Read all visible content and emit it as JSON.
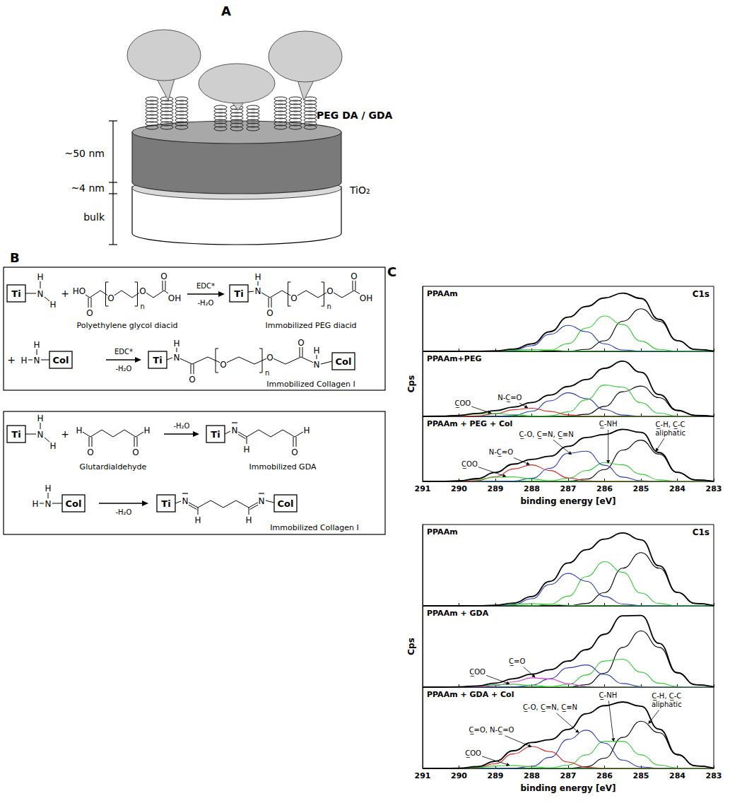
{
  "panel_a": {
    "letter": "A",
    "coating": "PEG DA / GDA",
    "layers": [
      "~50 nm",
      "~4 nm",
      "bulk"
    ],
    "oxide": "TiO₂"
  },
  "panel_b": {
    "letter": "B",
    "atoms": {
      "ti": "Ti",
      "n": "N",
      "h": "H",
      "o": "O",
      "oh": "OH",
      "ho": "HO",
      "repeat": "n",
      "col": "Col",
      "plus": "+"
    },
    "peg_scheme": {
      "reagent": "Polyethylene glycol diacid",
      "intermediate": "Immobilized PEG diacid",
      "product": "Immobilized Collagen I",
      "conditions": [
        "EDC*",
        "-H₂O"
      ]
    },
    "gda_scheme": {
      "reagent": "Glutardialdehyde",
      "intermediate": "Immobilized GDA",
      "product": "Immobilized Collagen I",
      "condition": "-H₂O"
    }
  },
  "panel_c": {
    "letter": "C"
  },
  "chart_data": [
    {
      "type": "line",
      "title": "PPAAm",
      "subtitle": "C1s",
      "x": [
        283,
        283.5,
        284,
        284.5,
        285,
        285.5,
        286,
        286.5,
        287,
        287.5,
        288,
        288.5,
        289,
        289.5,
        290,
        290.5,
        291
      ],
      "xlim": [
        291,
        283
      ],
      "xticks": [
        283,
        284,
        285,
        286,
        287,
        288,
        289,
        290,
        291
      ],
      "ylim": [
        0,
        110
      ],
      "tick_labels": false,
      "grid": false,
      "marker": "none",
      "series": [
        {
          "color": "#000000",
          "line_style": "solid",
          "values": [
            0.3,
            3.2,
            17.9,
            50.9,
            72,
            50.9,
            17.9,
            3.2,
            0.3,
            0,
            0,
            0,
            0,
            0,
            0,
            0,
            0
          ]
        },
        {
          "color": "#33cc33",
          "line_style": "solid",
          "values": [
            0,
            0,
            0.3,
            3.2,
            17.2,
            45.3,
            59.8,
            39.4,
            13.0,
            2.2,
            0.1,
            0,
            0,
            0,
            0,
            0,
            0
          ]
        },
        {
          "color": "#2a3db8",
          "line_style": "solid",
          "values": [
            0,
            0,
            0,
            0,
            0.2,
            2.4,
            12.6,
            33.2,
            43.9,
            28.9,
            9.5,
            1.6,
            0.1,
            0,
            0,
            0,
            0
          ]
        },
        {
          "color": "#33cc33",
          "line_style": "solid",
          "values": [
            0,
            0,
            0,
            0,
            0,
            0,
            0,
            0.1,
            0.7,
            2.1,
            3,
            2.1,
            0.7,
            0.1,
            0,
            0,
            0
          ]
        },
        {
          "color": "#000000",
          "line_style": "bold",
          "values": [
            0.3,
            3.2,
            18.2,
            54.1,
            89.4,
            98.6,
            90.3,
            75.9,
            57.9,
            33.2,
            12.6,
            3.7,
            0.8,
            0.1,
            0,
            0,
            0
          ]
        }
      ]
    },
    {
      "type": "line",
      "title": "PPAAm+PEG",
      "y_label": "Cps",
      "x": [
        283,
        283.5,
        284,
        284.5,
        285,
        285.5,
        286,
        286.5,
        287,
        287.5,
        288,
        288.5,
        289,
        289.5,
        290,
        290.5,
        291
      ],
      "xlim": [
        291,
        283
      ],
      "xticks": [
        283,
        284,
        285,
        286,
        287,
        288,
        289,
        290,
        291
      ],
      "ylim": [
        0,
        110
      ],
      "tick_labels": false,
      "grid": false,
      "marker": "none",
      "series": [
        {
          "color": "#000000",
          "line_style": "solid",
          "values": [
            0.1,
            1.5,
            9.7,
            31.6,
            51.3,
            41.7,
            16.9,
            3.4,
            0.4,
            0,
            0,
            0,
            0,
            0,
            0,
            0,
            0
          ]
        },
        {
          "color": "#33cc33",
          "line_style": "solid",
          "values": [
            0,
            0,
            0.6,
            5.4,
            23.0,
            49.4,
            53.0,
            28.3,
            7.6,
            1.0,
            0.1,
            0,
            0,
            0,
            0,
            0,
            0
          ]
        },
        {
          "color": "#2a3db8",
          "line_style": "solid",
          "values": [
            0,
            0,
            0,
            0,
            0.2,
            2.2,
            11.4,
            30.2,
            39.9,
            26.3,
            8.6,
            1.4,
            0.1,
            0,
            0,
            0,
            0
          ]
        },
        {
          "color": "#dd2222",
          "line_style": "solid",
          "values": [
            0,
            0,
            0,
            0,
            0,
            0,
            0,
            0.4,
            2.6,
            8.5,
            13.8,
            11.2,
            4.6,
            0.9,
            0.1,
            0,
            0
          ]
        },
        {
          "color": "#33cc33",
          "line_style": "solid",
          "values": [
            0,
            0,
            0,
            0,
            0,
            0,
            0,
            0,
            0,
            0.1,
            0.9,
            3.0,
            4.9,
            4.0,
            1.6,
            0.3,
            0
          ]
        },
        {
          "color": "#000000",
          "line_style": "bold",
          "values": [
            0.1,
            1.5,
            10.3,
            37.0,
            74.5,
            93.3,
            81.3,
            62.3,
            50.5,
            35.9,
            23.4,
            15.6,
            9.6,
            4.9,
            1.7,
            0.3,
            0
          ]
        }
      ],
      "annotations": [
        {
          "text": "C̲OO",
          "x": 289.1,
          "y": 5
        },
        {
          "text": "N-C̲=O",
          "x": 288.1,
          "y": 14
        }
      ]
    },
    {
      "type": "line",
      "title": "PPAAm + PEG + Col",
      "x_label": "binding energy [eV]",
      "x": [
        283,
        283.5,
        284,
        284.5,
        285,
        285.5,
        286,
        286.5,
        287,
        287.5,
        288,
        288.5,
        289,
        289.5,
        290,
        290.5,
        291
      ],
      "xlim": [
        291,
        283
      ],
      "xticks": [
        283,
        284,
        285,
        286,
        287,
        288,
        289,
        290,
        291
      ],
      "ylim": [
        0,
        110
      ],
      "tick_labels": "x",
      "grid": false,
      "marker": "none",
      "series": [
        {
          "color": "#000000",
          "line_style": "solid",
          "values": [
            0.2,
            2.5,
            15.1,
            46.0,
            69.8,
            52.9,
            20.0,
            3.8,
            0.4,
            0,
            0,
            0,
            0,
            0,
            0,
            0,
            0
          ]
        },
        {
          "color": "#33cc33",
          "line_style": "solid",
          "values": [
            0,
            0,
            0.3,
            2.6,
            12.1,
            27.9,
            32.0,
            18.3,
            5.2,
            0.8,
            0.1,
            0,
            0,
            0,
            0,
            0,
            0
          ]
        },
        {
          "color": "#2a3db8",
          "line_style": "solid",
          "values": [
            0,
            0,
            0,
            0.1,
            1.0,
            7.3,
            27.3,
            51.1,
            47.6,
            22.2,
            5.2,
            0.6,
            0,
            0,
            0,
            0,
            0
          ]
        },
        {
          "color": "#dd2222",
          "line_style": "solid",
          "values": [
            0,
            0,
            0,
            0,
            0,
            0,
            0.1,
            1.0,
            6.0,
            18.4,
            27.9,
            21.1,
            8.0,
            1.5,
            0.1,
            0,
            0
          ]
        },
        {
          "color": "#33cc33",
          "line_style": "solid",
          "values": [
            0,
            0,
            0,
            0,
            0,
            0,
            0,
            0,
            0.1,
            1.1,
            4.0,
            7.6,
            7.1,
            3.3,
            0.8,
            0.1,
            0
          ]
        },
        {
          "color": "#000000",
          "line_style": "bold",
          "values": [
            0.2,
            2.5,
            15.4,
            48.7,
            82.9,
            88.1,
            79.4,
            74.2,
            59.3,
            42.5,
            37.2,
            29.3,
            15.1,
            4.8,
            0.9,
            0.1,
            0
          ]
        }
      ],
      "annotations": [
        {
          "text": "C̲OO",
          "x": 288.7,
          "y": 8
        },
        {
          "text": "N-C̲=O",
          "x": 288.05,
          "y": 28
        },
        {
          "text": "C̲-O, C̲=N, C̲≡N",
          "x": 286.9,
          "y": 45
        },
        {
          "text": "C̲-NH",
          "x": 285.9,
          "y": 30
        },
        {
          "text": "C̲-H, C̲-C aliphatic",
          "x": 284.6,
          "y": 50
        }
      ]
    },
    {
      "type": "line",
      "title": "PPAAm",
      "subtitle": "C1s",
      "x": [
        283,
        283.5,
        284,
        284.5,
        285,
        285.5,
        286,
        286.5,
        287,
        287.5,
        288,
        288.5,
        289,
        289.5,
        290,
        290.5,
        291
      ],
      "xlim": [
        291,
        283
      ],
      "xticks": [
        283,
        284,
        285,
        286,
        287,
        288,
        289,
        290,
        291
      ],
      "ylim": [
        0,
        110
      ],
      "tick_labels": false,
      "grid": false,
      "marker": "none",
      "series": [
        {
          "color": "#000000",
          "line_style": "solid",
          "values": [
            0.3,
            3.2,
            17.9,
            50.9,
            72,
            50.9,
            17.9,
            3.2,
            0.3,
            0,
            0,
            0,
            0,
            0,
            0,
            0,
            0
          ]
        },
        {
          "color": "#33cc33",
          "line_style": "solid",
          "values": [
            0,
            0,
            0.3,
            3.2,
            17.2,
            45.3,
            59.8,
            39.4,
            13.0,
            2.2,
            0.1,
            0,
            0,
            0,
            0,
            0,
            0
          ]
        },
        {
          "color": "#2a3db8",
          "line_style": "solid",
          "values": [
            0,
            0,
            0,
            0,
            0.2,
            2.4,
            12.6,
            33.2,
            43.9,
            28.9,
            9.5,
            1.6,
            0.1,
            0,
            0,
            0,
            0
          ]
        },
        {
          "color": "#33cc33",
          "line_style": "solid",
          "values": [
            0,
            0,
            0,
            0,
            0,
            0,
            0,
            0.1,
            0.7,
            2.1,
            3,
            2.1,
            0.7,
            0.1,
            0,
            0,
            0
          ]
        },
        {
          "color": "#000000",
          "line_style": "bold",
          "values": [
            0.3,
            3.2,
            18.2,
            54.1,
            89.4,
            98.6,
            90.3,
            75.9,
            57.9,
            33.2,
            12.6,
            3.7,
            0.8,
            0.1,
            0,
            0,
            0
          ]
        }
      ]
    },
    {
      "type": "line",
      "title": "PPAAm + GDA",
      "y_label": "Cps",
      "x": [
        283,
        283.5,
        284,
        284.5,
        285,
        285.5,
        286,
        286.5,
        287,
        287.5,
        288,
        288.5,
        289,
        289.5,
        290,
        290.5,
        291
      ],
      "xlim": [
        291,
        283
      ],
      "xticks": [
        283,
        284,
        285,
        286,
        287,
        288,
        289,
        290,
        291
      ],
      "ylim": [
        0,
        110
      ],
      "tick_labels": false,
      "grid": false,
      "marker": "none",
      "series": [
        {
          "color": "#000000",
          "line_style": "solid",
          "values": [
            0.3,
            3.3,
            18.9,
            53.7,
            76,
            53.7,
            18.9,
            3.3,
            0.3,
            0,
            0,
            0,
            0,
            0,
            0,
            0,
            0
          ]
        },
        {
          "color": "#33cc33",
          "line_style": "solid",
          "values": [
            0,
            0,
            0.7,
            5.4,
            20.2,
            37.8,
            35.3,
            16.4,
            3.8,
            0.4,
            0,
            0,
            0,
            0,
            0,
            0,
            0
          ]
        },
        {
          "color": "#2a3db8",
          "line_style": "solid",
          "values": [
            0,
            0,
            0,
            0,
            0.7,
            4.9,
            17.2,
            30.0,
            26.2,
            11.4,
            2.5,
            0.3,
            0,
            0,
            0,
            0,
            0
          ]
        },
        {
          "color": "#dd33dd",
          "line_style": "solid",
          "values": [
            0,
            0,
            0,
            0,
            0,
            0,
            0.1,
            1.0,
            4.8,
            11.0,
            12.6,
            7.2,
            2.1,
            0.3,
            0,
            0,
            0
          ]
        },
        {
          "color": "#33cc33",
          "line_style": "solid",
          "values": [
            0,
            0,
            0,
            0,
            0,
            0,
            0,
            0,
            0.1,
            0.7,
            2.4,
            3.9,
            3.2,
            1.3,
            0.3,
            0,
            0
          ]
        },
        {
          "color": "#000000",
          "line_style": "bold",
          "values": [
            0.3,
            3.3,
            19.6,
            59.1,
            96.9,
            96.4,
            71.5,
            50.7,
            35.2,
            23.5,
            17.5,
            11.4,
            5.3,
            1.6,
            0.3,
            0,
            0
          ]
        }
      ],
      "annotations": [
        {
          "text": "C̲OO",
          "x": 288.6,
          "y": 4
        },
        {
          "text": "C̲=O",
          "x": 287.9,
          "y": 13
        }
      ]
    },
    {
      "type": "line",
      "title": "PPAAm + GDA + Col",
      "x_label": "binding energy [eV]",
      "x": [
        283,
        283.5,
        284,
        284.5,
        285,
        285.5,
        286,
        286.5,
        287,
        287.5,
        288,
        288.5,
        289,
        289.5,
        290,
        290.5,
        291
      ],
      "xlim": [
        291,
        283
      ],
      "xticks": [
        283,
        284,
        285,
        286,
        287,
        288,
        289,
        290,
        291
      ],
      "ylim": [
        0,
        110
      ],
      "tick_labels": "x",
      "grid": false,
      "marker": "none",
      "series": [
        {
          "color": "#000000",
          "line_style": "solid",
          "values": [
            0.3,
            3.5,
            18.3,
            48.3,
            63.8,
            42.0,
            13.8,
            2.3,
            0.2,
            0,
            0,
            0,
            0,
            0,
            0,
            0,
            0
          ]
        },
        {
          "color": "#33cc33",
          "line_style": "solid",
          "values": [
            0,
            0,
            0.6,
            4.6,
            18.3,
            36.7,
            36.7,
            18.3,
            4.6,
            0.6,
            0,
            0,
            0,
            0,
            0,
            0,
            0
          ]
        },
        {
          "color": "#2a3db8",
          "line_style": "solid",
          "values": [
            0,
            0,
            0,
            0.2,
            1.9,
            11.2,
            34.2,
            51.8,
            39.3,
            14.9,
            2.8,
            0.3,
            0,
            0,
            0,
            0,
            0
          ]
        },
        {
          "color": "#dd2222",
          "line_style": "solid",
          "values": [
            0,
            0,
            0,
            0,
            0,
            0,
            0.2,
            1.6,
            8.6,
            22.7,
            29.9,
            19.7,
            6.5,
            1.1,
            0.1,
            0,
            0
          ]
        },
        {
          "color": "#33cc33",
          "line_style": "solid",
          "values": [
            0,
            0,
            0,
            0,
            0,
            0,
            0,
            0,
            0.1,
            0.7,
            2.4,
            3.9,
            3.2,
            1.3,
            0.3,
            0,
            0
          ]
        },
        {
          "color": "#000000",
          "line_style": "bold",
          "values": [
            0.3,
            3.5,
            18.9,
            53.1,
            84.0,
            89.9,
            84.9,
            74.0,
            52.8,
            38.9,
            35.1,
            23.9,
            9.7,
            2.4,
            0.4,
            0,
            0
          ]
        }
      ],
      "annotations": [
        {
          "text": "C̲OO",
          "x": 288.6,
          "y": 4
        },
        {
          "text": "C̲=O, N-C̲=O",
          "x": 288.0,
          "y": 29
        },
        {
          "text": "C̲-O, C̲=N, C̲≡N",
          "x": 286.7,
          "y": 48
        },
        {
          "text": "C̲-NH",
          "x": 285.75,
          "y": 36
        },
        {
          "text": "C̲-H, C̲-C aliphatic",
          "x": 284.8,
          "y": 60
        }
      ]
    }
  ]
}
